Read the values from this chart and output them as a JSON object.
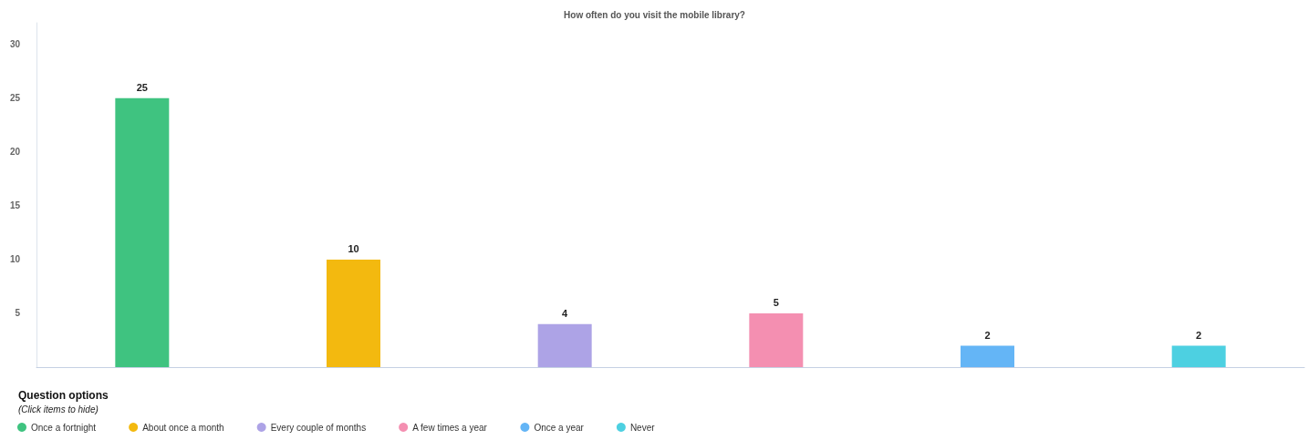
{
  "chart_data": {
    "type": "bar",
    "title": "How often do you visit the mobile library?",
    "categories": [
      null,
      null,
      null,
      null,
      null,
      null
    ],
    "series": [
      {
        "name": "Once a fortnight",
        "color": "#3fc380",
        "values": [
          25,
          null,
          null,
          null,
          null,
          null
        ]
      },
      {
        "name": "About once a month",
        "color": "#f3b90f",
        "values": [
          null,
          10,
          null,
          null,
          null,
          null
        ]
      },
      {
        "name": "Every couple of months",
        "color": "#ada3e6",
        "values": [
          null,
          null,
          4,
          null,
          null,
          null
        ]
      },
      {
        "name": "A few times a year",
        "color": "#f48fb1",
        "values": [
          null,
          null,
          null,
          5,
          null,
          null
        ]
      },
      {
        "name": "Once a year",
        "color": "#64b5f6",
        "values": [
          null,
          null,
          null,
          null,
          2,
          null
        ]
      },
      {
        "name": "Never",
        "color": "#4dd0e1",
        "values": [
          null,
          null,
          null,
          null,
          null,
          2
        ]
      }
    ],
    "ylim": [
      0,
      32
    ],
    "yticks": [
      5,
      10,
      15,
      20,
      25,
      30
    ],
    "legend": "bottom left",
    "legend_title": "Question options",
    "annotations": [
      "(Click items to hide)"
    ],
    "data_labels": true
  }
}
